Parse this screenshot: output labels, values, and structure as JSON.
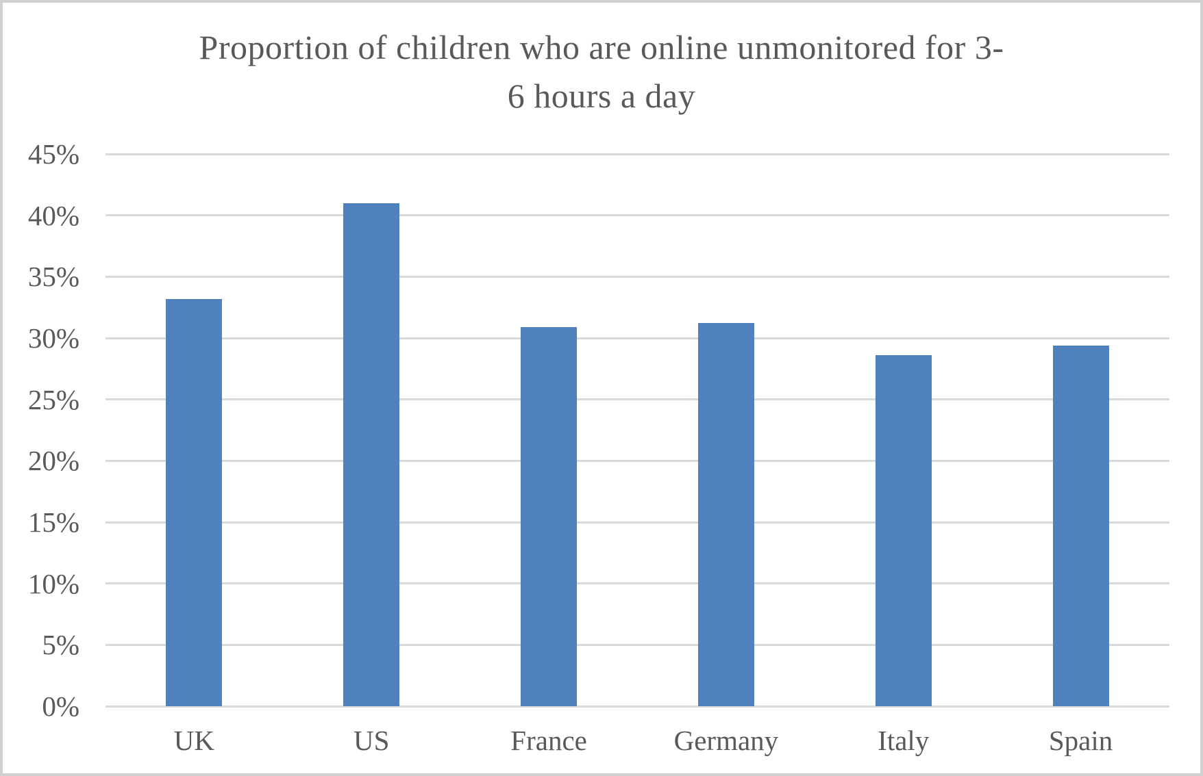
{
  "window": {
    "background_color": "#ffffff",
    "border_color": "#d0d0d0"
  },
  "chart_data": {
    "type": "bar",
    "title": "Proportion of children who are online unmonitored for 3-6 hours a day",
    "title_lines": [
      "Proportion of children who are online unmonitored for 3-",
      "6 hours a day"
    ],
    "categories": [
      "UK",
      "US",
      "France",
      "Germany",
      "Italy",
      "Spain"
    ],
    "values": [
      33.2,
      41.0,
      30.9,
      31.2,
      28.6,
      29.4
    ],
    "value_unit": "%",
    "xlabel": "",
    "ylabel": "",
    "ylim": [
      0,
      45
    ],
    "ytick_step": 5,
    "ytick_labels": [
      "0%",
      "5%",
      "10%",
      "15%",
      "20%",
      "25%",
      "30%",
      "35%",
      "40%",
      "45%"
    ],
    "grid": true,
    "legend": false,
    "bar_color": "#4f81bd",
    "gridline_color": "#d9d9d9",
    "text_color": "#595959"
  }
}
